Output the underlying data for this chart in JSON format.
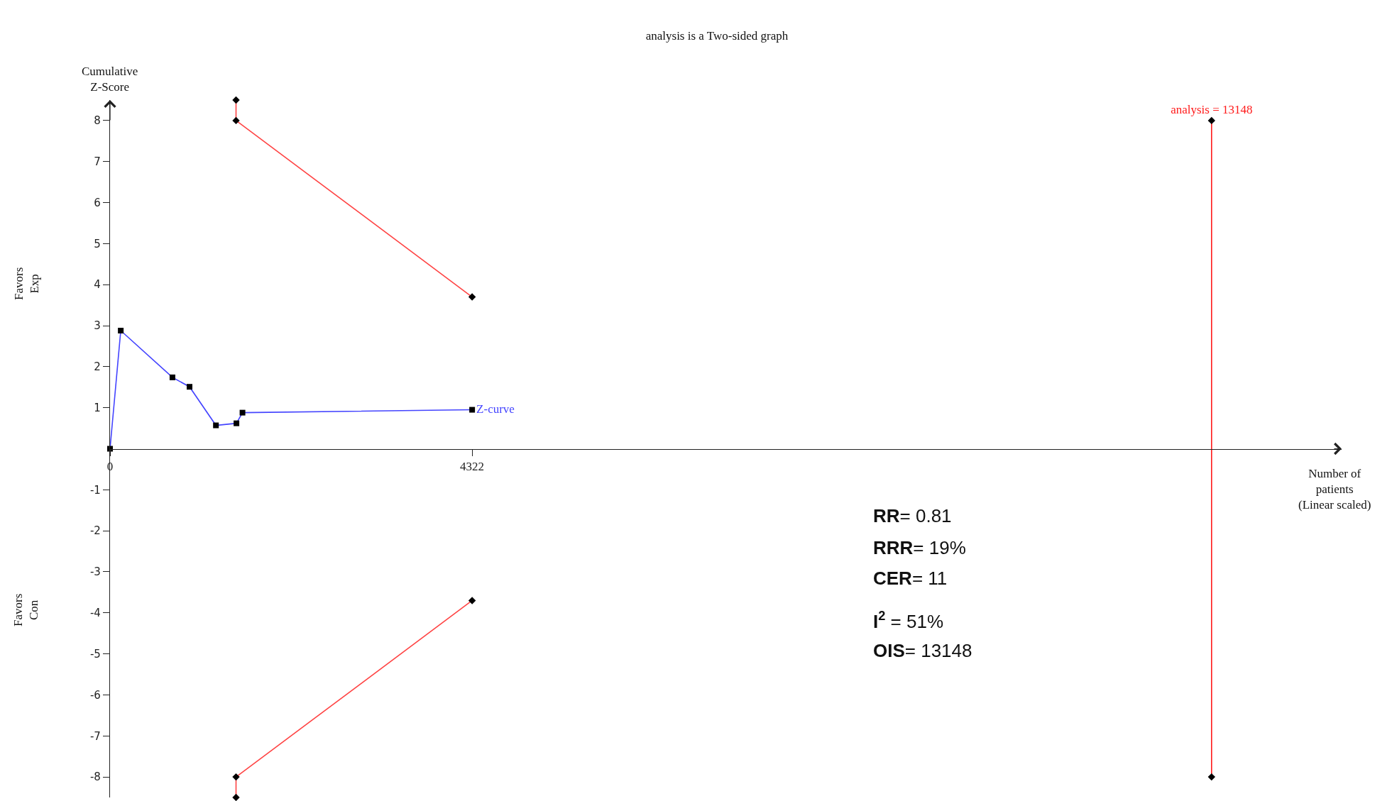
{
  "chart_data": {
    "type": "line",
    "title": "analysis is a Two-sided graph",
    "xlabel": "Number of\npatients\n(Linear scaled)",
    "ylabel": "Cumulative\nZ-Score",
    "annotations": [
      "Favors\nExp",
      "Favors\nCon",
      "RR= 0.81",
      "RRR= 19%",
      "CER= 11",
      "I$^{2}$ = 51%",
      "OIS= 13148"
    ],
    "xlim": [
      0,
      14700
    ],
    "xticks": [
      0,
      4322
    ],
    "ylim": [
      -8.5,
      8.5
    ],
    "yticks": [
      -8,
      -7,
      -6,
      -5,
      -4,
      -3,
      -2,
      -1,
      1,
      2,
      3,
      4,
      5,
      6,
      7,
      8
    ],
    "series": [
      {
        "name": "Z-curve",
        "color": "#4444ff",
        "marker": "square",
        "x": [
          0,
          128,
          745,
          949,
          1264,
          1509,
          1581,
          4322
        ],
        "values": [
          0,
          2.88,
          1.74,
          1.51,
          0.57,
          0.62,
          0.88,
          0.95
        ],
        "colors": [
          "#000000",
          "#000000",
          "#000000",
          "#000000",
          "#000000",
          "#000000",
          "#000000",
          "#000000"
        ]
      },
      {
        "color": "#ff4444",
        "marker": "diamond",
        "x": [
          1504,
          1504,
          4322
        ],
        "values": [
          8.5,
          8,
          3.7
        ],
        "colors": [
          "#000000",
          "#000000",
          "#000000"
        ]
      },
      {
        "color": "#ff4444",
        "marker": "diamond",
        "x": [
          1504,
          1504,
          4322
        ],
        "values": [
          -8.5,
          -8,
          -3.7
        ],
        "colors": [
          "#000000",
          "#000000",
          "#000000"
        ]
      },
      {
        "name": "analysis = 13148",
        "color": "#ff1a1a",
        "marker": "diamond",
        "x": [
          13148,
          13148
        ],
        "values": [
          -8,
          8
        ],
        "colors": [
          "#000000",
          "#000000"
        ]
      }
    ]
  }
}
